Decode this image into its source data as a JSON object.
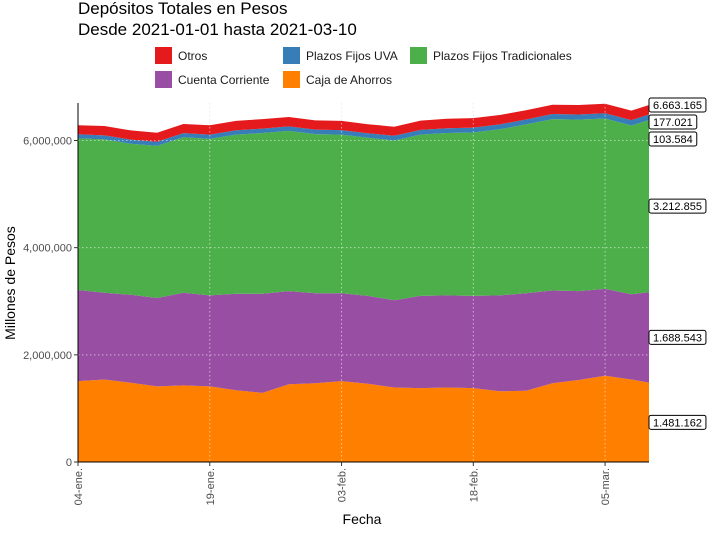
{
  "chart_data": {
    "type": "area",
    "stacked": true,
    "title": "Depósitos Totales en Pesos",
    "subtitle": "Desde 2021-01-01 hasta 2021-03-10",
    "xlabel": "Fecha",
    "ylabel": "Millones de Pesos",
    "x_start": "2021-01-04",
    "x_end": "2021-03-10",
    "x_ticks": [
      {
        "date": "2021-01-04",
        "label": "04-ene."
      },
      {
        "date": "2021-01-19",
        "label": "19-ene."
      },
      {
        "date": "2021-02-03",
        "label": "03-feb."
      },
      {
        "date": "2021-02-18",
        "label": "18-feb."
      },
      {
        "date": "2021-03-05",
        "label": "05-mar."
      }
    ],
    "y_ticks": [
      {
        "value": 0,
        "label": "0"
      },
      {
        "value": 2000000,
        "label": "2,000,000"
      },
      {
        "value": 4000000,
        "label": "4,000,000"
      },
      {
        "value": 6000000,
        "label": "6,000,000"
      }
    ],
    "ylim": [
      0,
      6700000
    ],
    "grid": true,
    "legend_position": "top",
    "x": [
      "2021-01-04",
      "2021-01-07",
      "2021-01-10",
      "2021-01-13",
      "2021-01-16",
      "2021-01-19",
      "2021-01-22",
      "2021-01-25",
      "2021-01-28",
      "2021-01-31",
      "2021-02-03",
      "2021-02-06",
      "2021-02-09",
      "2021-02-12",
      "2021-02-15",
      "2021-02-18",
      "2021-02-21",
      "2021-02-24",
      "2021-02-27",
      "2021-03-02",
      "2021-03-05",
      "2021-03-08",
      "2021-03-10"
    ],
    "series": [
      {
        "name": "Caja de Ahorros",
        "color": "#FF7F00",
        "values": [
          1510000,
          1540000,
          1480000,
          1410000,
          1430000,
          1410000,
          1340000,
          1290000,
          1450000,
          1470000,
          1510000,
          1460000,
          1390000,
          1380000,
          1390000,
          1380000,
          1320000,
          1330000,
          1470000,
          1530000,
          1610000,
          1540000,
          1481162
        ]
      },
      {
        "name": "Cuenta Corriente",
        "color": "#984EA3",
        "values": [
          1700000,
          1620000,
          1640000,
          1650000,
          1730000,
          1700000,
          1800000,
          1850000,
          1740000,
          1680000,
          1640000,
          1640000,
          1630000,
          1720000,
          1720000,
          1720000,
          1790000,
          1820000,
          1730000,
          1660000,
          1620000,
          1590000,
          1688543
        ]
      },
      {
        "name": "Plazos Fijos Tradicionales",
        "color": "#4DAF4A",
        "values": [
          2830000,
          2860000,
          2820000,
          2840000,
          2900000,
          2920000,
          2970000,
          3000000,
          2990000,
          2970000,
          2960000,
          2950000,
          2980000,
          3010000,
          3030000,
          3050000,
          3100000,
          3150000,
          3200000,
          3200000,
          3180000,
          3150000,
          3212855
        ]
      },
      {
        "name": "Plazos Fijos UVA",
        "color": "#377EB8",
        "values": [
          75000,
          76000,
          77000,
          78000,
          79000,
          80000,
          81000,
          82000,
          83000,
          84000,
          85000,
          86000,
          87000,
          88000,
          89000,
          90000,
          91000,
          92000,
          94000,
          96000,
          98000,
          101000,
          103584
        ]
      },
      {
        "name": "Otros",
        "color": "#E41A1C",
        "values": [
          170000,
          175000,
          172000,
          168000,
          170000,
          173000,
          175000,
          178000,
          176000,
          172000,
          170000,
          168000,
          171000,
          174000,
          176000,
          178000,
          175000,
          172000,
          174000,
          176000,
          178000,
          177000,
          177021
        ]
      }
    ],
    "end_labels": [
      {
        "series": "Total",
        "text": "6.663.165"
      },
      {
        "series": "Otros",
        "text": "177.021"
      },
      {
        "series": "Plazos Fijos UVA",
        "text": "103.584"
      },
      {
        "series": "Plazos Fijos Tradicionales",
        "text": "3.212.855"
      },
      {
        "series": "Cuenta Corriente",
        "text": "1.688.543"
      },
      {
        "series": "Caja de Ahorros",
        "text": "1.481.162"
      }
    ],
    "legend": [
      {
        "label": "Otros",
        "color": "#E41A1C"
      },
      {
        "label": "Plazos Fijos UVA",
        "color": "#377EB8"
      },
      {
        "label": "Plazos Fijos Tradicionales",
        "color": "#4DAF4A"
      },
      {
        "label": "Cuenta Corriente",
        "color": "#984EA3"
      },
      {
        "label": "Caja de Ahorros",
        "color": "#FF7F00"
      }
    ]
  }
}
